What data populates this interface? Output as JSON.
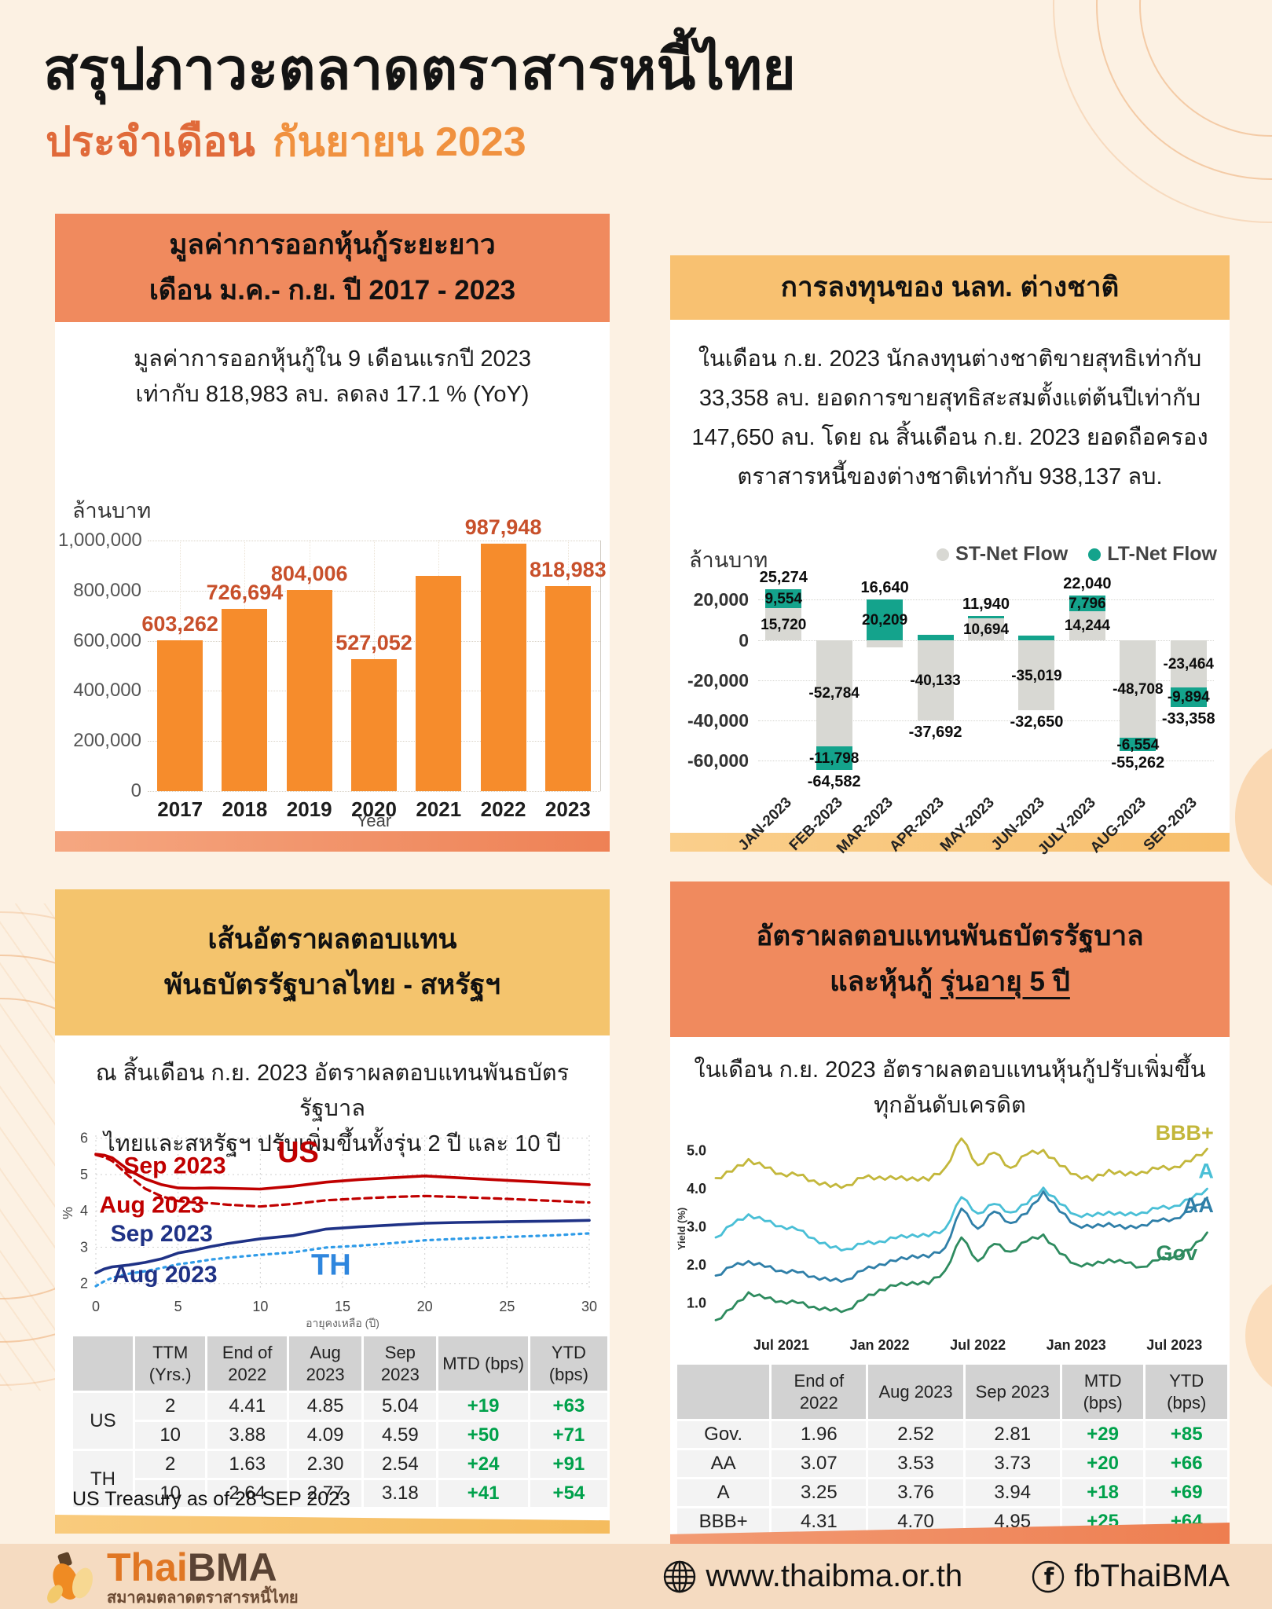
{
  "page": {
    "title": "สรุปภาวะตลาดตราสารหนี้ไทย",
    "subtitle_prefix": "ประจำเดือน",
    "subtitle_month": "กันยายน 2023"
  },
  "panel1": {
    "header": "มูลค่าการออกหุ้นกู้ระยะยาว\nเดือน ม.ค.- ก.ย. ปี 2017 - 2023",
    "desc": "มูลค่าการออกหุ้นกู้ใน 9 เดือนแรกปี 2023\nเท่ากับ 818,983 ลบ. ลดลง 17.1 % (YoY)"
  },
  "panel2": {
    "header": "การลงทุนของ นลท. ต่างชาติ",
    "desc": "ในเดือน ก.ย. 2023 นักลงทุนต่างชาติขายสุทธิเท่ากับ\n33,358 ลบ. ยอดการขายสุทธิสะสมตั้งแต่ต้นปีเท่ากับ\n147,650 ลบ. โดย ณ สิ้นเดือน ก.ย. 2023 ยอดถือครอง\nตราสารหนี้ของต่างชาติเท่ากับ 938,137 ลบ."
  },
  "panel3": {
    "header": "เส้นอัตราผลตอบแทน\nพันธบัตรรัฐบาลไทย - สหรัฐฯ",
    "desc": "ณ สิ้นเดือน ก.ย. 2023 อัตราผลตอบแทนพันธบัตรรัฐบาล\nไทยและสหรัฐฯ ปรับเพิ่มขึ้นทั้งรุ่น 2 ปี และ 10 ปี",
    "footnote": "US Treasury as of 28 SEP 2023",
    "table": {
      "columns": [
        "",
        "TTM\n(Yrs.)",
        "End of\n2022",
        "Aug\n2023",
        "Sep\n2023",
        "MTD (bps)",
        "YTD\n(bps)"
      ],
      "widths": [
        86,
        94,
        112,
        100,
        100,
        130,
        108
      ],
      "groups": [
        {
          "label": "US",
          "rows": 2
        },
        {
          "label": "TH",
          "rows": 2
        }
      ],
      "rows": [
        [
          "2",
          "4.41",
          "4.85",
          "5.04",
          "+19",
          "+63"
        ],
        [
          "10",
          "3.88",
          "4.09",
          "4.59",
          "+50",
          "+71"
        ],
        [
          "2",
          "1.63",
          "2.30",
          "2.54",
          "+24",
          "+91"
        ],
        [
          "10",
          "2.64",
          "2.77",
          "3.18",
          "+41",
          "+54"
        ]
      ],
      "green_from": 4
    }
  },
  "panel4": {
    "header_line1": "อัตราผลตอบแทนพันธบัตรรัฐบาล",
    "header_line2_prefix": "และหุ้นกู้ ",
    "header_line2_underline": "รุ่นอายุ 5 ปี",
    "desc": "ในเดือน ก.ย. 2023 อัตราผลตอบแทนหุ้นกู้ปรับเพิ่มขึ้น\nทุกอันดับเครดิต",
    "table": {
      "columns": [
        "",
        "End of\n2022",
        "Aug 2023",
        "Sep 2023",
        "MTD\n(bps)",
        "YTD\n(bps)"
      ],
      "widths": [
        118,
        124,
        124,
        124,
        104,
        104
      ],
      "rows": [
        [
          "Gov.",
          "1.96",
          "2.52",
          "2.81",
          "+29",
          "+85"
        ],
        [
          "AA",
          "3.07",
          "3.53",
          "3.73",
          "+20",
          "+66"
        ],
        [
          "A",
          "3.25",
          "3.76",
          "3.94",
          "+18",
          "+69"
        ],
        [
          "BBB+",
          "4.31",
          "4.70",
          "4.95",
          "+25",
          "+64"
        ]
      ],
      "green_from": 4
    }
  },
  "footer": {
    "logo_thai": "Thai",
    "logo_bma": "BMA",
    "logo_subtitle": "สมาคมตลาดตราสารหนี้ไทย",
    "website": "www.thaibma.or.th",
    "facebook": "fbThaiBMA"
  },
  "chart_data": [
    {
      "type": "bar",
      "title": "มูลค่าการออกหุ้นกู้ระยะยาว เดือน ม.ค.- ก.ย. ปี 2017 - 2023",
      "unit": "ล้านบาท",
      "xlabel": "Year",
      "categories": [
        "2017",
        "2018",
        "2019",
        "2020",
        "2021",
        "2022",
        "2023"
      ],
      "values": [
        603262,
        726694,
        804006,
        527052,
        860000,
        987948,
        818983
      ],
      "bar_labels": [
        "603,262",
        "726,694",
        "804,006",
        "527,052",
        null,
        "987,948",
        "818,983"
      ],
      "ylim": [
        0,
        1000000
      ],
      "yticks": [
        {
          "v": 0,
          "label": "0"
        },
        {
          "v": 200000,
          "label": "200,000"
        },
        {
          "v": 400000,
          "label": "400,000"
        },
        {
          "v": 600000,
          "label": "600,000"
        },
        {
          "v": 800000,
          "label": "800,000"
        },
        {
          "v": 1000000,
          "label": "1,000,000"
        }
      ],
      "bar_color": "#F68C2C",
      "label_color": "#C8502B"
    },
    {
      "type": "stacked-bar",
      "title": "การลงทุนของ นลท. ต่างชาติ",
      "unit": "ล้านบาท",
      "legend": [
        {
          "name": "ST-Net Flow",
          "color": "#D8D8D3"
        },
        {
          "name": "LT-Net Flow",
          "color": "#14A38C"
        }
      ],
      "categories": [
        "JAN-2023",
        "FEB-2023",
        "MAR-2023",
        "APR-2023",
        "MAY-2023",
        "JUN-2023",
        "JULY-2023",
        "AUG-2023",
        "SEP-2023"
      ],
      "st": [
        15720,
        -52784,
        -3569,
        -40133,
        10694,
        -35019,
        14244,
        -48708,
        -23464
      ],
      "lt": [
        9554,
        -11798,
        20209,
        2441,
        1246,
        2369,
        7796,
        -6554,
        -9894
      ],
      "st_labels": [
        "15,720",
        "-52,784",
        null,
        "-40,133",
        "10,694",
        "-35,019",
        "14,244",
        "-48,708",
        "-23,464"
      ],
      "lt_labels": [
        "9,554",
        "-11,798",
        "20,209",
        null,
        null,
        null,
        "7,796",
        "-6,554",
        "-9,894"
      ],
      "totals": [
        25274,
        -64582,
        16640,
        -37692,
        11940,
        -32650,
        22040,
        -55262,
        -33358
      ],
      "total_labels": [
        "25,274",
        "-64,582",
        "16,640",
        "-37,692",
        "11,940",
        "-32,650",
        "22,040",
        "-55,262",
        "-33,358"
      ],
      "ylim": [
        -72000,
        28000
      ],
      "yticks": [
        {
          "v": 20000,
          "label": "20,000"
        },
        {
          "v": 0,
          "label": "0"
        },
        {
          "v": -20000,
          "label": "-20,000"
        },
        {
          "v": -40000,
          "label": "-40,000"
        },
        {
          "v": -60000,
          "label": "-60,000"
        }
      ]
    },
    {
      "type": "line",
      "xlabel": "อายุคงเหลือ (ปี)",
      "ylabel": "%",
      "xlim": [
        0,
        30
      ],
      "ylim": [
        1.8,
        6.08
      ],
      "xticks": [
        0,
        5,
        10,
        15,
        20,
        25,
        30
      ],
      "yticks": [
        2,
        3,
        4,
        5,
        6
      ],
      "x": [
        0,
        0.5,
        1,
        2,
        3,
        4,
        5,
        6,
        7,
        8,
        10,
        12,
        14,
        16,
        18,
        20,
        22,
        25,
        28,
        30
      ],
      "series": [
        {
          "name": "US Sep 2023",
          "color": "#C00000",
          "dash": null,
          "width": 3.6,
          "y": [
            5.56,
            5.53,
            5.46,
            5.12,
            4.88,
            4.72,
            4.63,
            4.62,
            4.63,
            4.62,
            4.6,
            4.68,
            4.79,
            4.86,
            4.91,
            4.96,
            4.91,
            4.84,
            4.77,
            4.72
          ]
        },
        {
          "name": "US Aug 2023",
          "color": "#C00000",
          "dash": "9 6",
          "width": 3.2,
          "y": [
            5.54,
            5.48,
            5.37,
            4.96,
            4.61,
            4.4,
            4.27,
            4.23,
            4.21,
            4.17,
            4.12,
            4.19,
            4.29,
            4.34,
            4.38,
            4.41,
            4.38,
            4.33,
            4.27,
            4.23
          ]
        },
        {
          "name": "TH Sep 2023",
          "color": "#1F3286",
          "dash": null,
          "width": 3.6,
          "y": [
            2.29,
            2.4,
            2.46,
            2.51,
            2.58,
            2.68,
            2.84,
            2.92,
            3.02,
            3.1,
            3.23,
            3.32,
            3.5,
            3.56,
            3.61,
            3.66,
            3.68,
            3.7,
            3.72,
            3.74
          ]
        },
        {
          "name": "TH Aug 2023",
          "color": "#2E9BE8",
          "dash": "3 6",
          "width": 3.2,
          "y": [
            1.93,
            2.06,
            2.16,
            2.27,
            2.34,
            2.43,
            2.53,
            2.59,
            2.66,
            2.71,
            2.79,
            2.86,
            2.99,
            3.04,
            3.11,
            3.19,
            3.23,
            3.28,
            3.33,
            3.38
          ]
        }
      ],
      "annotations": [
        {
          "text": "Sep 2023",
          "x": 4.8,
          "y": 5.03,
          "color": "#C00000",
          "size": 30,
          "anchor": "middle"
        },
        {
          "text": "US",
          "x": 12.3,
          "y": 5.34,
          "color": "#C00000",
          "size": 38,
          "anchor": "middle"
        },
        {
          "text": "Aug 2023",
          "x": 3.4,
          "y": 3.95,
          "color": "#C00000",
          "size": 30,
          "anchor": "middle"
        },
        {
          "text": "Sep 2023",
          "x": 4.0,
          "y": 3.16,
          "color": "#1F3286",
          "size": 30,
          "anchor": "middle"
        },
        {
          "text": "TH",
          "x": 14.3,
          "y": 2.24,
          "color": "#2E86DE",
          "size": 38,
          "anchor": "middle"
        },
        {
          "text": "Aug 2023",
          "x": 4.2,
          "y": 2.04,
          "color": "#1F3286",
          "size": 30,
          "anchor": "middle"
        }
      ]
    },
    {
      "type": "line",
      "ylabel": "Yield (%)",
      "xlim": [
        0,
        30.6
      ],
      "ylim": [
        0.35,
        5.55
      ],
      "xtick_pos": [
        4,
        10,
        16,
        22,
        28
      ],
      "xtick_labels": [
        "Jul 2021",
        "Jan 2022",
        "Jul 2022",
        "Jan 2023",
        "Jul 2023"
      ],
      "yticks": [
        {
          "v": 1,
          "label": "1.0"
        },
        {
          "v": 2,
          "label": "2.0"
        },
        {
          "v": 3,
          "label": "3.0"
        },
        {
          "v": 4,
          "label": "4.0"
        },
        {
          "v": 5,
          "label": "5.0"
        }
      ],
      "x": [
        0,
        1,
        2,
        3,
        4,
        5,
        6,
        7,
        8,
        9,
        10,
        11,
        12,
        13,
        14,
        15,
        16,
        17,
        18,
        19,
        20,
        21,
        22,
        23,
        24,
        25,
        26,
        27,
        28,
        29,
        30
      ],
      "series": [
        {
          "name": "BBB+",
          "color": "#C3B73B",
          "width": 2.8,
          "jitter": 0.06,
          "y": [
            4.28,
            4.45,
            4.78,
            4.55,
            4.4,
            4.35,
            4.22,
            4.05,
            4.1,
            4.28,
            4.32,
            4.25,
            4.3,
            4.22,
            4.55,
            5.32,
            4.62,
            4.95,
            4.55,
            4.9,
            5.02,
            4.6,
            4.38,
            4.22,
            4.5,
            4.35,
            4.45,
            4.52,
            4.58,
            4.72,
            5.05
          ]
        },
        {
          "name": "A",
          "color": "#49BFD6",
          "width": 2.8,
          "jitter": 0.05,
          "y": [
            2.72,
            3.05,
            3.33,
            3.15,
            3.02,
            2.92,
            2.7,
            2.45,
            2.42,
            2.55,
            2.62,
            2.7,
            2.8,
            2.75,
            2.95,
            3.78,
            3.35,
            3.6,
            3.38,
            3.6,
            4.03,
            3.6,
            3.32,
            3.28,
            3.4,
            3.3,
            3.38,
            3.48,
            3.55,
            3.72,
            4.0
          ]
        },
        {
          "name": "AA",
          "color": "#2F7FA8",
          "width": 2.8,
          "jitter": 0.05,
          "y": [
            1.72,
            1.95,
            2.1,
            1.95,
            1.85,
            1.8,
            1.7,
            1.58,
            1.62,
            1.85,
            2.02,
            2.1,
            2.25,
            2.2,
            2.45,
            3.48,
            2.95,
            3.4,
            3.1,
            3.35,
            3.93,
            3.4,
            3.05,
            2.98,
            3.1,
            2.95,
            3.05,
            3.15,
            3.22,
            3.4,
            3.77
          ]
        },
        {
          "name": "Gov",
          "color": "#2E8B5F",
          "width": 2.8,
          "jitter": 0.05,
          "y": [
            0.55,
            0.85,
            1.28,
            1.12,
            1.05,
            1.0,
            0.9,
            0.8,
            0.82,
            1.08,
            1.35,
            1.45,
            1.55,
            1.5,
            1.85,
            2.72,
            2.1,
            2.55,
            2.35,
            2.62,
            2.8,
            2.3,
            2.02,
            1.98,
            2.15,
            2.05,
            1.95,
            2.12,
            2.22,
            2.4,
            2.85
          ]
        }
      ],
      "annotations": [
        {
          "text": "BBB+",
          "x": 30.4,
          "y": 5.28,
          "color": "#C3B73B",
          "size": 27,
          "anchor": "end"
        },
        {
          "text": "A",
          "x": 30.4,
          "y": 4.28,
          "color": "#49BFD6",
          "size": 27,
          "anchor": "end"
        },
        {
          "text": "AA",
          "x": 30.4,
          "y": 3.38,
          "color": "#2F7FA8",
          "size": 27,
          "anchor": "end"
        },
        {
          "text": "Gov",
          "x": 29.4,
          "y": 2.12,
          "color": "#2E8B5F",
          "size": 27,
          "anchor": "end"
        }
      ]
    }
  ]
}
